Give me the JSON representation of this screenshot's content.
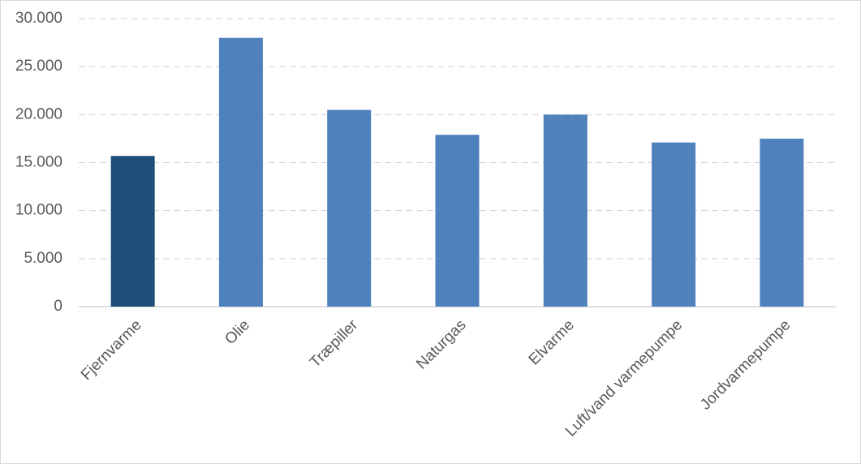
{
  "chart_data": {
    "type": "bar",
    "categories": [
      "Fjernvarme",
      "Olie",
      "Træpiller",
      "Naturgas",
      "Elvarme",
      "Luft/vand varmepumpe",
      "Jordvarmepumpe"
    ],
    "values": [
      15700,
      28000,
      20500,
      17900,
      20000,
      17100,
      17500
    ],
    "colors": [
      "#1f4e79",
      "#4f81bd",
      "#4f81bd",
      "#4f81bd",
      "#4f81bd",
      "#4f81bd",
      "#4f81bd"
    ],
    "ylim": [
      0,
      30000
    ],
    "yticks": [
      0,
      {
        "value": 5000,
        "label": "5.000"
      },
      {
        "value": 10000,
        "label": "10.000"
      },
      {
        "value": 15000,
        "label": "15.000"
      },
      {
        "value": 20000,
        "label": "20.000"
      },
      {
        "value": 25000,
        "label": "25.000"
      },
      {
        "value": 30000,
        "label": "30.000"
      }
    ],
    "grid": true
  }
}
